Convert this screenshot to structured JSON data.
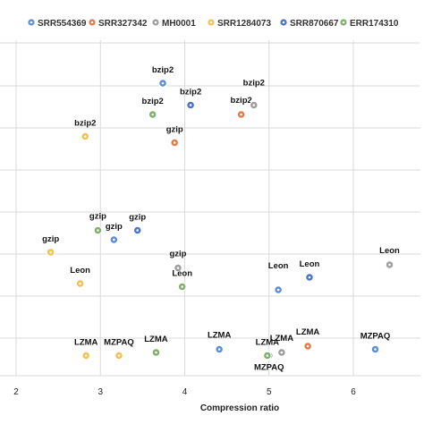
{
  "chart_data": {
    "type": "scatter",
    "title": "",
    "xlabel": "Compression ratio",
    "ylabel": "",
    "xlim": [
      1.95,
      6.65
    ],
    "ylim": [
      0,
      10
    ],
    "x_ticks": [
      "2",
      "3",
      "4",
      "5",
      "6"
    ],
    "y_ticks_visible": false,
    "grid": true,
    "legend_position": "top",
    "series": [
      {
        "name": "SRR554369",
        "color": "#5b8fd6",
        "points": [
          {
            "x": 3.74,
            "y": 9.2,
            "label": "bzip2"
          },
          {
            "x": 3.16,
            "y": 4.2,
            "label": "gzip"
          },
          {
            "x": 5.11,
            "y": 2.6,
            "label": "Leon"
          },
          {
            "x": 4.41,
            "y": 0.7,
            "label": "LZMA"
          },
          {
            "x": 6.26,
            "y": 0.7,
            "label": "MZPAQ"
          }
        ]
      },
      {
        "name": "SRR327342",
        "color": "#e07b4a",
        "points": [
          {
            "x": 4.67,
            "y": 8.2,
            "label": "bzip2"
          },
          {
            "x": 3.88,
            "y": 7.3,
            "label": "gzip"
          },
          {
            "x": 5.46,
            "y": 0.8,
            "label": "LZMA"
          }
        ]
      },
      {
        "name": "MH0001",
        "color": "#9e9e9e",
        "points": [
          {
            "x": 4.82,
            "y": 8.5,
            "label": "bzip2"
          },
          {
            "x": 3.92,
            "y": 3.3,
            "label": "gzip"
          },
          {
            "x": 6.43,
            "y": 3.4,
            "label": "Leon"
          },
          {
            "x": 5.15,
            "y": 0.6,
            "label": "LZMA"
          }
        ]
      },
      {
        "name": "SRR1284073",
        "color": "#f2c14e",
        "points": [
          {
            "x": 2.82,
            "y": 7.5,
            "label": "bzip2"
          },
          {
            "x": 2.41,
            "y": 3.8,
            "label": "gzip"
          },
          {
            "x": 2.76,
            "y": 2.8,
            "label": "Leon"
          },
          {
            "x": 2.83,
            "y": 0.5,
            "label": "LZMA"
          },
          {
            "x": 3.22,
            "y": 0.5,
            "label": "MZPAQ"
          }
        ]
      },
      {
        "name": "SRR870667",
        "color": "#4a74c9",
        "points": [
          {
            "x": 4.07,
            "y": 8.5,
            "label": "bzip2"
          },
          {
            "x": 3.44,
            "y": 4.5,
            "label": "gzip"
          },
          {
            "x": 5.48,
            "y": 3.0,
            "label": "Leon"
          },
          {
            "x": 5.0,
            "y": 0.5,
            "label": "MZPAQ"
          }
        ]
      },
      {
        "name": "ERR174310",
        "color": "#7fb069",
        "points": [
          {
            "x": 3.62,
            "y": 8.2,
            "label": "bzip2"
          },
          {
            "x": 2.97,
            "y": 4.5,
            "label": "gzip"
          },
          {
            "x": 3.97,
            "y": 2.7,
            "label": "Leon"
          },
          {
            "x": 3.66,
            "y": 0.6,
            "label": "LZMA"
          },
          {
            "x": 4.98,
            "y": 0.5,
            "label": "LZMA"
          }
        ]
      }
    ]
  }
}
